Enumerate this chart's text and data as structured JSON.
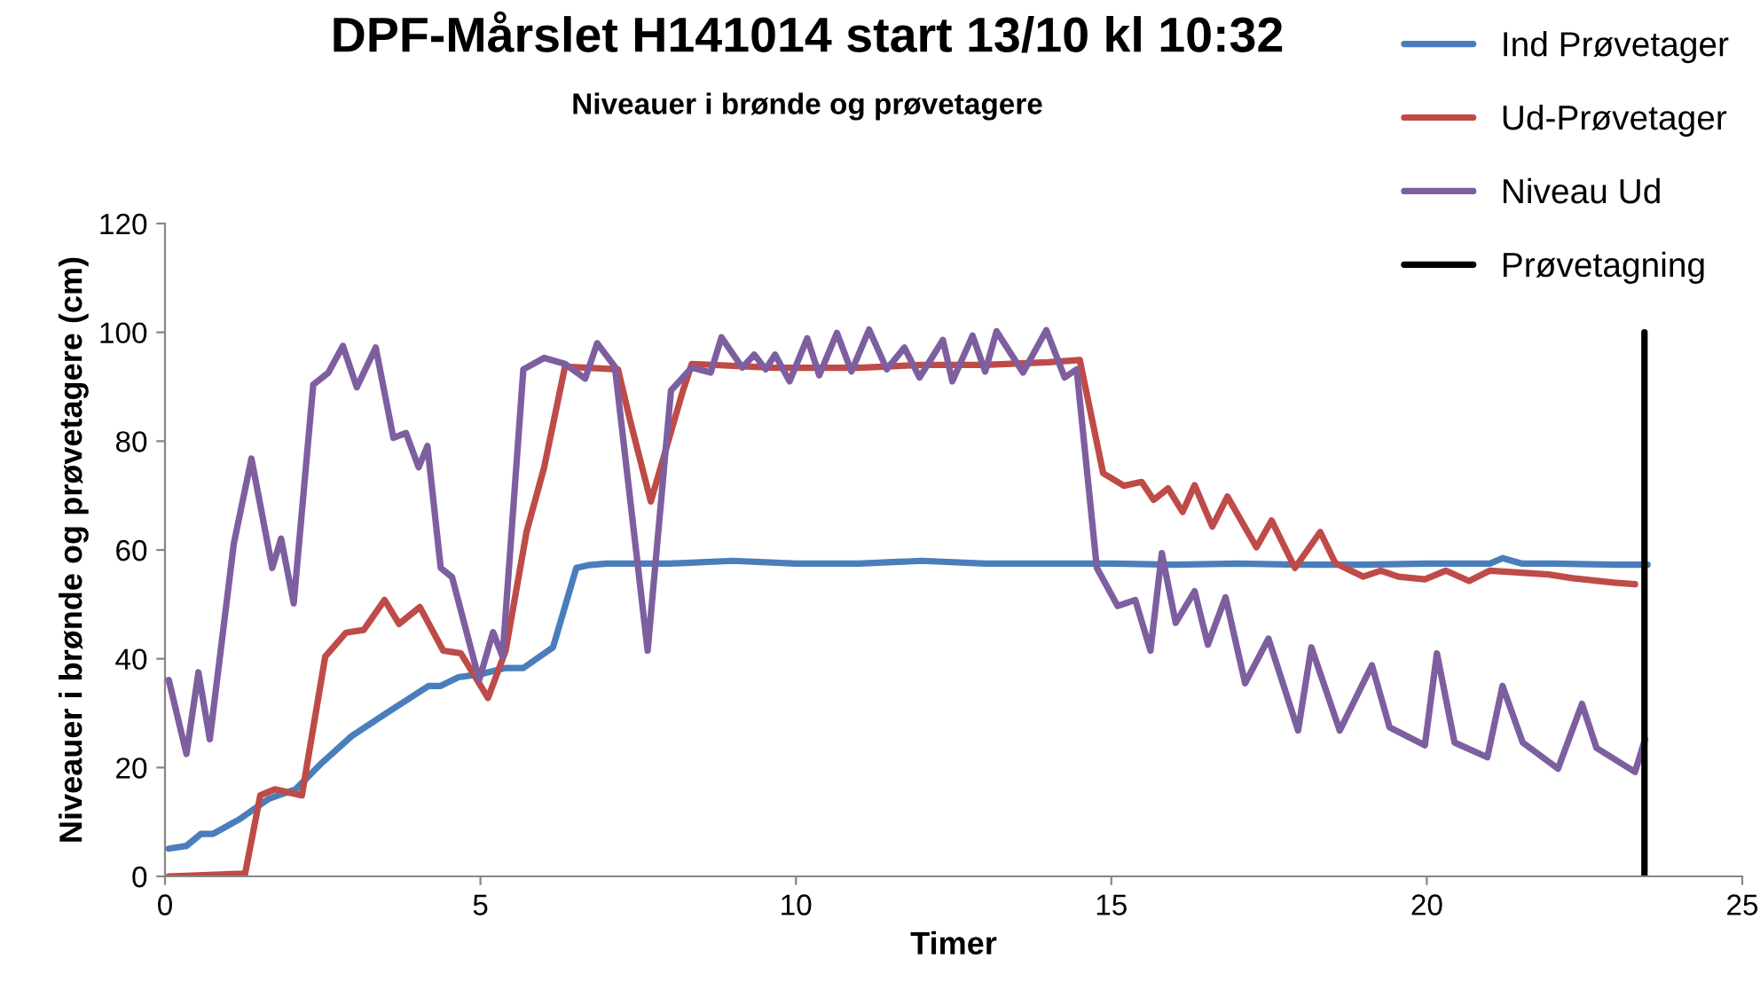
{
  "chart_data": {
    "type": "line",
    "title": "DPF-Mårslet H141014 start 13/10 kl 10:32",
    "subtitle": "Niveauer i brønde og prøvetagere",
    "xlabel": "Timer",
    "ylabel": "Niveauer i brønde og prøvetagere (cm)",
    "xlim": [
      0,
      25
    ],
    "xticks": [
      0,
      5,
      10,
      15,
      20,
      25
    ],
    "ylim": [
      0,
      120
    ],
    "yticks": [
      0,
      20,
      40,
      60,
      80,
      100,
      120
    ],
    "grid": false,
    "legend": "top right",
    "marker": "none",
    "line_style": "solid",
    "series": [
      {
        "name": "Ind Prøvetager",
        "color": "#4a7ebb",
        "x": [
          0.06,
          0.34,
          0.57,
          0.76,
          1.18,
          1.65,
          2.07,
          2.49,
          2.96,
          3.52,
          4.18,
          4.37,
          4.65,
          5.02,
          5.4,
          5.68,
          6.15,
          6.52,
          6.71,
          7,
          8,
          9,
          10,
          11,
          12,
          13,
          14,
          15,
          16,
          17,
          18,
          19,
          20,
          21,
          21.2,
          21.5,
          22,
          23,
          23.5
        ],
        "values": [
          5.1,
          5.6,
          7.8,
          7.8,
          10.5,
          14.3,
          16,
          20.9,
          25.8,
          30.1,
          35,
          35,
          36.6,
          37.2,
          38.3,
          38.3,
          42.1,
          56.7,
          57.2,
          57.5,
          57.5,
          58,
          57.5,
          57.5,
          58,
          57.5,
          57.5,
          57.5,
          57.3,
          57.5,
          57.3,
          57.3,
          57.5,
          57.5,
          58.5,
          57.5,
          57.5,
          57.3,
          57.3
        ]
      },
      {
        "name": "Ud-Prøvetager",
        "color": "#be4b48",
        "x": [
          0.06,
          1.27,
          1.51,
          1.74,
          2.17,
          2.54,
          2.87,
          3.15,
          3.48,
          3.71,
          4.04,
          4.41,
          4.69,
          5.12,
          5.4,
          5.73,
          6.01,
          6.34,
          7.18,
          7.37,
          7.7,
          8.21,
          8.35,
          9.66,
          11,
          12,
          13,
          14,
          14.5,
          14.87,
          15.2,
          15.48,
          15.67,
          15.9,
          16.13,
          16.32,
          16.6,
          16.84,
          17.3,
          17.54,
          17.91,
          18.31,
          18.55,
          18.99,
          19.27,
          19.55,
          19.97,
          20.3,
          20.67,
          21,
          21.93,
          22.31,
          22.97,
          23.3
        ],
        "values": [
          0,
          0.5,
          14.9,
          16,
          14.9,
          40.4,
          44.8,
          45.3,
          50.8,
          46.4,
          49.5,
          41.5,
          41,
          32.8,
          41.5,
          63.3,
          75.2,
          93.7,
          93.2,
          83.9,
          68.9,
          89.3,
          94.2,
          93.5,
          93.5,
          94,
          94,
          94.5,
          94.9,
          74.1,
          71.8,
          72.5,
          69.2,
          71.3,
          67,
          71.9,
          64.3,
          69.8,
          60.5,
          65.4,
          56.7,
          63.3,
          57.6,
          55.1,
          56.2,
          55.1,
          54.6,
          56.2,
          54.3,
          56.2,
          55.5,
          54.8,
          54,
          53.7
        ]
      },
      {
        "name": "Niveau Ud",
        "color": "#7d5fa0",
        "x": [
          0.06,
          0.34,
          0.53,
          0.71,
          1.09,
          1.37,
          1.7,
          1.84,
          2.04,
          2.35,
          2.59,
          2.82,
          3.04,
          3.34,
          3.62,
          3.82,
          4.02,
          4.16,
          4.37,
          4.55,
          4.98,
          5.2,
          5.35,
          5.68,
          6.01,
          6.34,
          6.66,
          6.85,
          7.13,
          7.65,
          8.02,
          8.35,
          8.65,
          8.82,
          9.15,
          9.34,
          9.52,
          9.67,
          9.9,
          10.18,
          10.37,
          10.65,
          10.88,
          11.16,
          11.44,
          11.72,
          11.96,
          12.33,
          12.48,
          12.8,
          13.0,
          13.18,
          13.6,
          13.97,
          14.26,
          14.45,
          14.77,
          15.1,
          15.38,
          15.62,
          15.8,
          16.02,
          16.32,
          16.53,
          16.81,
          17.12,
          17.49,
          17.96,
          18.17,
          18.62,
          19.13,
          19.41,
          19.97,
          20.16,
          20.44,
          20.96,
          21.2,
          21.52,
          22.08,
          22.46,
          22.69,
          23.3,
          23.46
        ],
        "values": [
          36.1,
          22.5,
          37.5,
          25.2,
          61.1,
          76.8,
          56.7,
          62.1,
          50.2,
          90.4,
          92.6,
          97.5,
          89.9,
          97.2,
          80.6,
          81.5,
          75.2,
          79.1,
          56.7,
          55,
          36.1,
          44.9,
          40.4,
          93.2,
          95.3,
          94.2,
          91.5,
          98,
          93.7,
          41.5,
          89.3,
          93.5,
          92.6,
          99.1,
          93.5,
          95.9,
          93.2,
          95.9,
          91,
          98.9,
          92.1,
          99.9,
          92.8,
          100.5,
          93.2,
          97.2,
          91.7,
          98.6,
          91,
          99.4,
          92.8,
          100.2,
          92.6,
          100.4,
          91.7,
          93.2,
          56.7,
          49.7,
          50.8,
          41.5,
          59.4,
          46.6,
          52.4,
          42.6,
          51.3,
          35.5,
          43.7,
          26.8,
          42.1,
          26.8,
          38.8,
          27.4,
          24.1,
          41,
          24.6,
          21.9,
          35,
          24.6,
          19.8,
          31.7,
          23.6,
          19.2,
          25.2
        ]
      },
      {
        "name": "Prøvetagning",
        "color": "#000000",
        "x": [
          23.45,
          23.45
        ],
        "values": [
          0,
          100
        ]
      }
    ]
  }
}
